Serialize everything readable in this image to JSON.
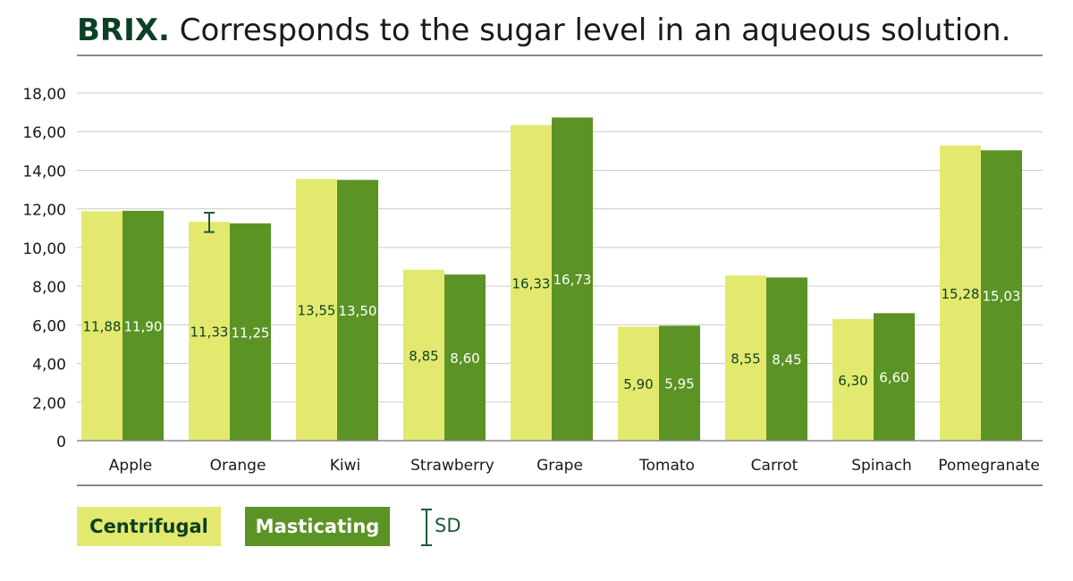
{
  "title": {
    "bold": "BRIX.",
    "rest": " Corresponds to the sugar level in an aqueous solution."
  },
  "legend": {
    "centrifugal": "Centrifugal",
    "masticating": "Masticating",
    "sd": "SD"
  },
  "colors": {
    "centrifugal": "#e2e96e",
    "masticating": "#5b9325",
    "label_dark": "#0d3f24",
    "label_light": "#ffffff",
    "grid": "#cccccc",
    "axis": "#8a8a8a",
    "sd": "#1d5a35"
  },
  "chart_data": {
    "type": "bar",
    "title": "BRIX. Corresponds to the sugar level in an aqueous solution.",
    "xlabel": "",
    "ylabel": "",
    "ylim": [
      0,
      18
    ],
    "yticks": [
      0,
      2,
      4,
      6,
      8,
      10,
      12,
      14,
      16,
      18
    ],
    "ytick_labels": [
      "0",
      "2,00",
      "4,00",
      "6,00",
      "8,00",
      "10,00",
      "12,00",
      "14,00",
      "16,00",
      "18,00"
    ],
    "categories": [
      "Apple",
      "Orange",
      "Kiwi",
      "Strawberry",
      "Grape",
      "Tomato",
      "Carrot",
      "Spinach",
      "Pomegranate"
    ],
    "series": [
      {
        "name": "Centrifugal",
        "values": [
          11.88,
          11.33,
          13.55,
          8.85,
          16.33,
          5.9,
          8.55,
          6.3,
          15.28
        ],
        "labels": [
          "11,88",
          "11,33",
          "13,55",
          "8,85",
          "16,33",
          "5,90",
          "8,55",
          "6,30",
          "15,28"
        ]
      },
      {
        "name": "Masticating",
        "values": [
          11.9,
          11.25,
          13.5,
          8.6,
          16.73,
          5.95,
          8.45,
          6.6,
          15.03
        ],
        "labels": [
          "11,90",
          "11,25",
          "13,50",
          "8,60",
          "16,73",
          "5,95",
          "8,45",
          "6,60",
          "15,03"
        ]
      }
    ],
    "error_bars": [
      {
        "series": "Centrifugal",
        "category": "Orange",
        "low": 10.8,
        "high": 11.8
      }
    ],
    "grid": true,
    "legend": "bottom-left"
  }
}
